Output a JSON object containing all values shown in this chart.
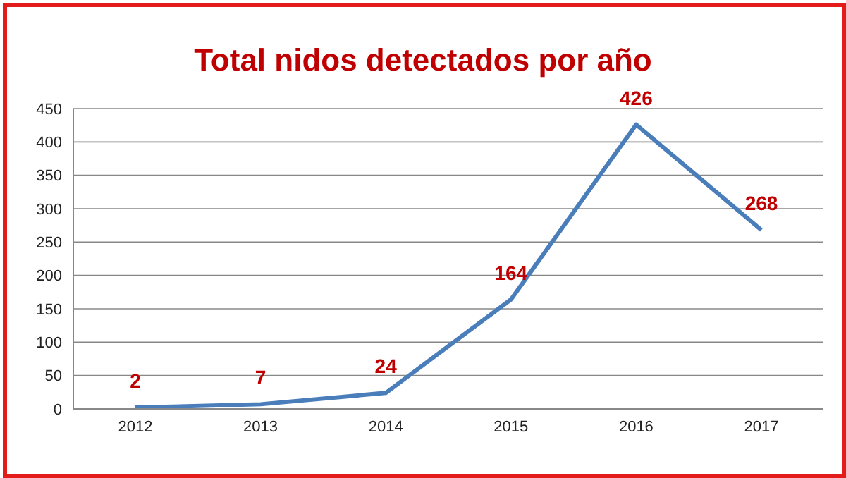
{
  "chart_data": {
    "type": "line",
    "title": "Total nidos detectados por año",
    "categories": [
      "2012",
      "2013",
      "2014",
      "2015",
      "2016",
      "2017"
    ],
    "series": [
      {
        "color": "#4a7ebb",
        "values": [
          2,
          7,
          24,
          164,
          426,
          268
        ]
      }
    ],
    "ylim": [
      0,
      450
    ],
    "yticks": [
      0,
      50,
      100,
      150,
      200,
      250,
      300,
      350,
      400,
      450
    ],
    "grid": "y",
    "marker": "none",
    "line_style": "solid",
    "data_labels": true
  }
}
